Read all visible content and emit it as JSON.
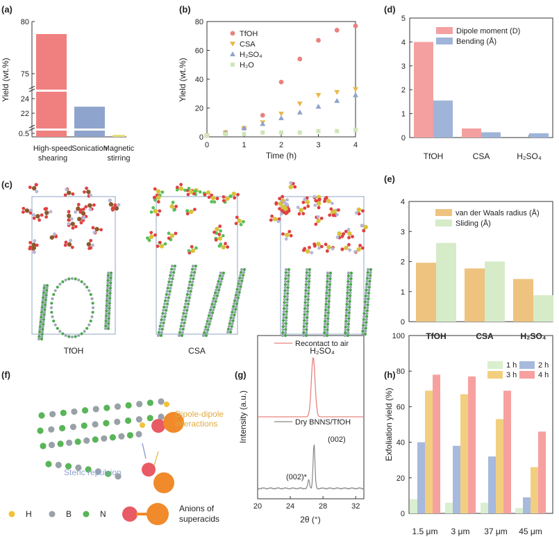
{
  "chart_data": [
    {
      "id": "a",
      "panel_label": "(a)",
      "type": "bar",
      "ylabel": "Yield (wt.%)",
      "y_ticks": [
        "80",
        "75",
        "24",
        "22",
        "0.5"
      ],
      "categories": [
        "High-speed shearing",
        "Sonication",
        "Magnetic stirring"
      ],
      "category_lines": [
        [
          "High-speed",
          "shearing"
        ],
        [
          "Sonication"
        ],
        [
          "Magnetic",
          "stirring"
        ]
      ],
      "values": [
        78.8,
        22.9,
        0.4
      ],
      "colors": [
        "#f08080",
        "#8fa4cc",
        "#e8e07a"
      ]
    },
    {
      "id": "b",
      "panel_label": "(b)",
      "type": "scatter",
      "xlabel": "Time (h)",
      "ylabel": "Yield (wt.%)",
      "xlim": [
        0,
        4
      ],
      "ylim": [
        0,
        80
      ],
      "x_ticks": [
        "0",
        "1",
        "2",
        "3",
        "4"
      ],
      "y_ticks": [
        "0",
        "20",
        "40",
        "60",
        "80"
      ],
      "x": [
        0,
        0.5,
        1,
        1.5,
        2,
        2.5,
        3,
        3.5,
        4
      ],
      "series": [
        {
          "name": "TfOH",
          "marker": "circle",
          "color": "#e8827e",
          "values": [
            1,
            3,
            6,
            15,
            38,
            54,
            67,
            74,
            77
          ]
        },
        {
          "name": "CSA",
          "marker": "triangle-down",
          "color": "#e8b84a",
          "values": [
            1,
            3,
            6,
            10,
            16,
            23,
            29,
            31,
            33
          ]
        },
        {
          "name": "H₂SO₄",
          "marker": "triangle-up",
          "color": "#8fa4cc",
          "values": [
            1,
            3,
            6,
            9,
            13,
            17,
            21,
            25,
            29
          ]
        },
        {
          "name": "H₂O",
          "marker": "square",
          "color": "#cfe6b8",
          "values": [
            1,
            2,
            2,
            3,
            3,
            3,
            4,
            4,
            5
          ]
        }
      ]
    },
    {
      "id": "d",
      "panel_label": "(d)",
      "type": "bar",
      "ylim": [
        0,
        5
      ],
      "y_ticks": [
        "0",
        "1",
        "2",
        "3",
        "4",
        "5"
      ],
      "categories": [
        "TfOH",
        "CSA",
        "H₂SO₄"
      ],
      "series": [
        {
          "name": "Dipole moment (D)",
          "color": "#f4a0a0",
          "values": [
            4.0,
            0.38,
            0
          ]
        },
        {
          "name": "Bending (Å)",
          "color": "#9fb4d8",
          "values": [
            1.55,
            0.22,
            0.18
          ]
        }
      ]
    },
    {
      "id": "e",
      "panel_label": "(e)",
      "type": "bar",
      "ylim": [
        0,
        4
      ],
      "y_ticks": [
        "0",
        "1",
        "2",
        "3",
        "4"
      ],
      "categories": [
        "TfOH",
        "CSA",
        "H₂SO₄"
      ],
      "series": [
        {
          "name": "van der Waals radius (Å)",
          "color": "#edc37f",
          "values": [
            1.96,
            1.77,
            1.42
          ]
        },
        {
          "name": "Sliding (Å)",
          "color": "#d6ebc8",
          "values": [
            2.62,
            2.0,
            0.88
          ]
        }
      ]
    },
    {
      "id": "g",
      "panel_label": "(g)",
      "type": "line",
      "xlabel": "2θ (°)",
      "ylabel": "Intensity (a.u.)",
      "xlim": [
        20,
        33
      ],
      "x_ticks": [
        "20",
        "24",
        "28",
        "32"
      ],
      "series": [
        {
          "name": "Recontact to air",
          "color": "#e8827e"
        },
        {
          "name": "Dry BNNS/TfOH",
          "color": "#888888"
        }
      ],
      "annotations": [
        "(002)",
        "(002)*"
      ]
    },
    {
      "id": "h",
      "panel_label": "(h)",
      "type": "bar",
      "ylabel": "Exfoliation yield (%)",
      "ylim": [
        0,
        100
      ],
      "y_ticks": [
        "0",
        "20",
        "40",
        "60",
        "80",
        "100"
      ],
      "categories": [
        "1.5 μm",
        "3 μm",
        "37 μm",
        "45 μm"
      ],
      "series": [
        {
          "name": "1 h",
          "color": "#d9efcf",
          "values": [
            8,
            6,
            6,
            3
          ]
        },
        {
          "name": "2 h",
          "color": "#a7b9dd",
          "values": [
            40,
            38,
            32,
            9
          ]
        },
        {
          "name": "3 h",
          "color": "#f2cf80",
          "values": [
            69,
            67,
            53,
            26
          ]
        },
        {
          "name": "4 h",
          "color": "#f7a0a0",
          "values": [
            78,
            77,
            69,
            46
          ]
        }
      ]
    }
  ],
  "panel_c": {
    "label": "(c)",
    "captions": [
      "TfOH",
      "CSA",
      "H₂SO₄"
    ]
  },
  "panel_f": {
    "label": "(f)",
    "dipole_lines": [
      "Dipole-dipole",
      "interactions"
    ],
    "steric_label": "Steric repulsion",
    "legend_atoms": [
      "H",
      "B",
      "N"
    ],
    "anion_lines": [
      "Anions of",
      "superacids"
    ]
  }
}
